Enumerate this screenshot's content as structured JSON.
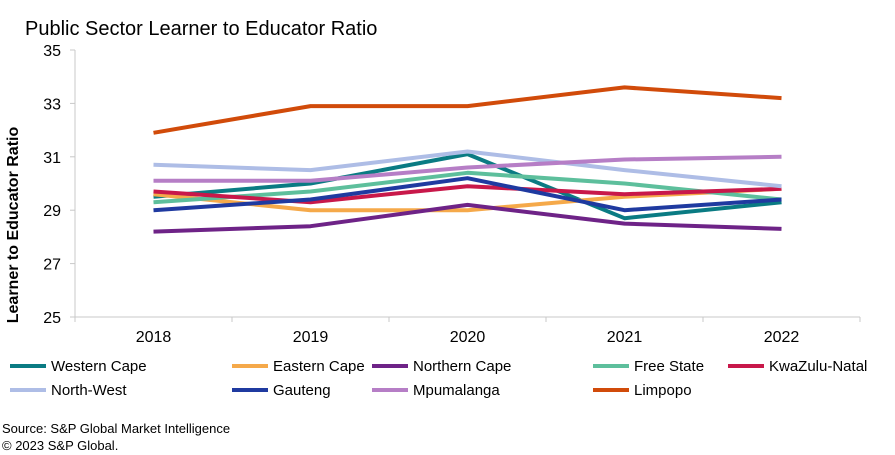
{
  "chart_data": {
    "type": "line",
    "title": "Public Sector Learner to Educator Ratio",
    "xlabel": "",
    "ylabel": "Learner to Educator Ratio",
    "categories": [
      "2018",
      "2019",
      "2020",
      "2021",
      "2022"
    ],
    "ylim": [
      25,
      35
    ],
    "yticks": [
      25,
      27,
      29,
      31,
      33,
      35
    ],
    "grid": false,
    "legend_position": "bottom",
    "series": [
      {
        "name": "Western Cape",
        "color": "#0a7b83",
        "values": [
          29.5,
          30.0,
          31.1,
          28.7,
          29.3
        ]
      },
      {
        "name": "Eastern Cape",
        "color": "#f5a94a",
        "values": [
          29.6,
          29.0,
          29.0,
          29.5,
          29.8
        ]
      },
      {
        "name": "Northern Cape",
        "color": "#6e2387",
        "values": [
          28.2,
          28.4,
          29.2,
          28.5,
          28.3
        ]
      },
      {
        "name": "Free State",
        "color": "#5dbf9c",
        "values": [
          29.3,
          29.7,
          30.4,
          30.0,
          29.4
        ]
      },
      {
        "name": "KwaZulu-Natal",
        "color": "#c8184a",
        "values": [
          29.7,
          29.3,
          29.9,
          29.6,
          29.8
        ]
      },
      {
        "name": "North-West",
        "color": "#aebde6",
        "values": [
          30.7,
          30.5,
          31.2,
          30.5,
          29.9
        ]
      },
      {
        "name": "Gauteng",
        "color": "#1f3aa0",
        "values": [
          29.0,
          29.4,
          30.2,
          29.0,
          29.4
        ]
      },
      {
        "name": "Mpumalanga",
        "color": "#b67ec6",
        "values": [
          30.1,
          30.1,
          30.6,
          30.9,
          31.0
        ]
      },
      {
        "name": "Limpopo",
        "color": "#d14b0a",
        "values": [
          31.9,
          32.9,
          32.9,
          33.6,
          33.2
        ]
      }
    ]
  },
  "source": {
    "line1": "Source: S&P Global Market Intelligence",
    "line2": "© 2023 S&P Global."
  }
}
